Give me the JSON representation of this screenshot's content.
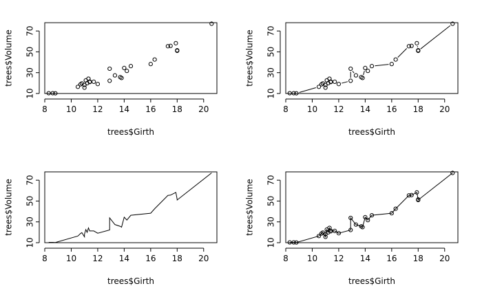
{
  "chart_data": [
    {
      "type": "scatter",
      "plot_type": "p",
      "xlabel": "trees$Girth",
      "ylabel": "trees$Volume",
      "xlim": [
        8,
        21
      ],
      "ylim": [
        10,
        78
      ],
      "xticks": [
        "8",
        "10",
        "12",
        "14",
        "16",
        "18",
        "20"
      ],
      "yticks": [
        "10",
        "30",
        "50",
        "70"
      ],
      "series": [
        {
          "x": [
            8.3,
            8.6,
            8.8,
            10.5,
            10.7,
            10.8,
            11.0,
            11.0,
            11.1,
            11.2,
            11.3,
            11.4,
            11.4,
            11.7,
            12.0,
            12.9,
            12.9,
            13.3,
            13.7,
            13.8,
            14.0,
            14.2,
            14.5,
            16.0,
            16.3,
            17.3,
            17.5,
            17.9,
            18.0,
            18.0,
            20.6
          ],
          "y": [
            10.3,
            10.3,
            10.2,
            16.4,
            18.8,
            19.7,
            15.6,
            18.2,
            22.6,
            19.9,
            24.2,
            21.0,
            21.4,
            21.3,
            19.1,
            22.2,
            33.8,
            27.4,
            25.7,
            24.9,
            34.5,
            31.7,
            36.3,
            38.3,
            42.6,
            55.4,
            55.7,
            58.3,
            51.5,
            51.0,
            77.0
          ]
        }
      ]
    },
    {
      "type": "line",
      "plot_type": "b",
      "xlabel": "trees$Girth",
      "ylabel": "trees$Volume",
      "xlim": [
        8,
        21
      ],
      "ylim": [
        10,
        78
      ],
      "xticks": [
        "8",
        "10",
        "12",
        "14",
        "16",
        "18",
        "20"
      ],
      "yticks": [
        "10",
        "30",
        "50",
        "70"
      ],
      "series": [
        {
          "x": [
            8.3,
            8.6,
            8.8,
            10.5,
            10.7,
            10.8,
            11.0,
            11.0,
            11.1,
            11.2,
            11.3,
            11.4,
            11.4,
            11.7,
            12.0,
            12.9,
            12.9,
            13.3,
            13.7,
            13.8,
            14.0,
            14.2,
            14.5,
            16.0,
            16.3,
            17.3,
            17.5,
            17.9,
            18.0,
            18.0,
            20.6
          ],
          "y": [
            10.3,
            10.3,
            10.2,
            16.4,
            18.8,
            19.7,
            15.6,
            18.2,
            22.6,
            19.9,
            24.2,
            21.0,
            21.4,
            21.3,
            19.1,
            22.2,
            33.8,
            27.4,
            25.7,
            24.9,
            34.5,
            31.7,
            36.3,
            38.3,
            42.6,
            55.4,
            55.7,
            58.3,
            51.5,
            51.0,
            77.0
          ]
        }
      ]
    },
    {
      "type": "line",
      "plot_type": "l",
      "xlabel": "trees$Girth",
      "ylabel": "trees$Volume",
      "xlim": [
        8,
        21
      ],
      "ylim": [
        10,
        78
      ],
      "xticks": [
        "8",
        "10",
        "12",
        "14",
        "16",
        "18",
        "20"
      ],
      "yticks": [
        "10",
        "30",
        "50",
        "70"
      ],
      "series": [
        {
          "x": [
            8.3,
            8.6,
            8.8,
            10.5,
            10.7,
            10.8,
            11.0,
            11.0,
            11.1,
            11.2,
            11.3,
            11.4,
            11.4,
            11.7,
            12.0,
            12.9,
            12.9,
            13.3,
            13.7,
            13.8,
            14.0,
            14.2,
            14.5,
            16.0,
            16.3,
            17.3,
            17.5,
            17.9,
            18.0,
            18.0,
            20.6
          ],
          "y": [
            10.3,
            10.3,
            10.2,
            16.4,
            18.8,
            19.7,
            15.6,
            18.2,
            22.6,
            19.9,
            24.2,
            21.0,
            21.4,
            21.3,
            19.1,
            22.2,
            33.8,
            27.4,
            25.7,
            24.9,
            34.5,
            31.7,
            36.3,
            38.3,
            42.6,
            55.4,
            55.7,
            58.3,
            51.5,
            51.0,
            77.0
          ]
        }
      ]
    },
    {
      "type": "line",
      "plot_type": "o",
      "xlabel": "trees$Girth",
      "ylabel": "trees$Volume",
      "xlim": [
        8,
        21
      ],
      "ylim": [
        10,
        78
      ],
      "xticks": [
        "8",
        "10",
        "12",
        "14",
        "16",
        "18",
        "20"
      ],
      "yticks": [
        "10",
        "30",
        "50",
        "70"
      ],
      "series": [
        {
          "x": [
            8.3,
            8.6,
            8.8,
            10.5,
            10.7,
            10.8,
            11.0,
            11.0,
            11.1,
            11.2,
            11.3,
            11.4,
            11.4,
            11.7,
            12.0,
            12.9,
            12.9,
            13.3,
            13.7,
            13.8,
            14.0,
            14.2,
            14.5,
            16.0,
            16.3,
            17.3,
            17.5,
            17.9,
            18.0,
            18.0,
            20.6
          ],
          "y": [
            10.3,
            10.3,
            10.2,
            16.4,
            18.8,
            19.7,
            15.6,
            18.2,
            22.6,
            19.9,
            24.2,
            21.0,
            21.4,
            21.3,
            19.1,
            22.2,
            33.8,
            27.4,
            25.7,
            24.9,
            34.5,
            31.7,
            36.3,
            38.3,
            42.6,
            55.4,
            55.7,
            58.3,
            51.5,
            51.0,
            77.0
          ]
        }
      ]
    }
  ]
}
